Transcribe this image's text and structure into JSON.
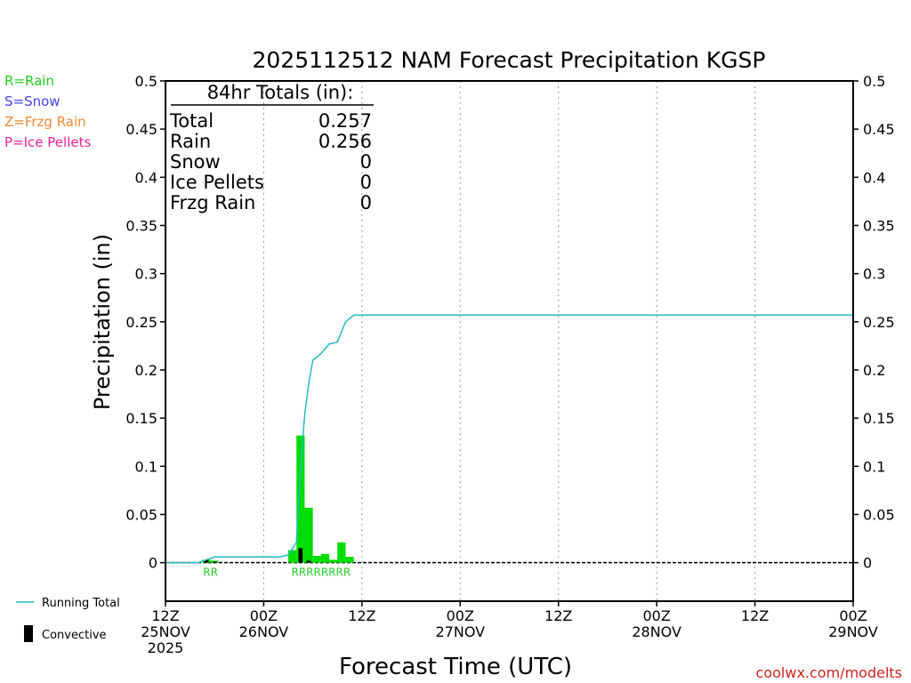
{
  "chart_data": {
    "type": "bar",
    "title": "2025112512 NAM Forecast Precipitation KGSP",
    "xlabel": "Forecast Time (UTC)",
    "ylabel": "Precipitation (in)",
    "ylim": [
      -0.04,
      0.5
    ],
    "y_ticks": [
      "0.5",
      "0.45",
      "0.4",
      "0.35",
      "0.3",
      "0.25",
      "0.2",
      "0.15",
      "0.1",
      "0.05",
      "0"
    ],
    "x_axis_range_hours": [
      0,
      84
    ],
    "x_ticks": [
      {
        "hour": 0,
        "line1": "12Z",
        "line2": "25NOV",
        "line3": "2025"
      },
      {
        "hour": 12,
        "line1": "00Z",
        "line2": "26NOV",
        "line3": ""
      },
      {
        "hour": 24,
        "line1": "12Z",
        "line2": "",
        "line3": ""
      },
      {
        "hour": 36,
        "line1": "00Z",
        "line2": "27NOV",
        "line3": ""
      },
      {
        "hour": 48,
        "line1": "12Z",
        "line2": "",
        "line3": ""
      },
      {
        "hour": 60,
        "line1": "00Z",
        "line2": "28NOV",
        "line3": ""
      },
      {
        "hour": 72,
        "line1": "12Z",
        "line2": "",
        "line3": ""
      },
      {
        "hour": 84,
        "line1": "00Z",
        "line2": "29NOV",
        "line3": ""
      }
    ],
    "grid": "vertical dotted lines at 00Z and 12Z",
    "precip_bars": [
      {
        "hour": 5,
        "total": 0.003,
        "convective": 0.003
      },
      {
        "hour": 6,
        "total": 0.002,
        "convective": 0.001
      },
      {
        "hour": 15.5,
        "total": 0.013,
        "convective": 0.0
      },
      {
        "hour": 16.5,
        "total": 0.132,
        "convective": 0.015
      },
      {
        "hour": 17.5,
        "total": 0.057,
        "convective": 0.002
      },
      {
        "hour": 18.5,
        "total": 0.007,
        "convective": 0.0
      },
      {
        "hour": 19.5,
        "total": 0.009,
        "convective": 0.0
      },
      {
        "hour": 20.5,
        "total": 0.003,
        "convective": 0.0
      },
      {
        "hour": 21.5,
        "total": 0.021,
        "convective": 0.0
      },
      {
        "hour": 22.5,
        "total": 0.006,
        "convective": 0.0
      }
    ],
    "running_total": {
      "name": "Running Total",
      "x": [
        0,
        4,
        5,
        6,
        7,
        12,
        14,
        15,
        16,
        16.5,
        17,
        17.5,
        18,
        19,
        20,
        21,
        22,
        23,
        84
      ],
      "y": [
        0,
        0.0,
        0.003,
        0.006,
        0.006,
        0.006,
        0.006,
        0.008,
        0.021,
        0.1,
        0.153,
        0.186,
        0.21,
        0.217,
        0.227,
        0.229,
        0.25,
        0.257,
        0.257
      ]
    },
    "ptype_markers": [
      {
        "hour": 5.5,
        "text": "RR"
      },
      {
        "hour": 19,
        "text": "RRRRRRRR"
      }
    ],
    "totals_box": {
      "header": "84hr Totals (in):",
      "rows": [
        {
          "label": "Total",
          "value": "0.257"
        },
        {
          "label": "Rain",
          "value": "0.256"
        },
        {
          "label": "Snow",
          "value": "0"
        },
        {
          "label": "Ice Pellets",
          "value": "0"
        },
        {
          "label": "Frzg Rain",
          "value": "0"
        }
      ]
    },
    "ptype_legend": [
      {
        "text": "R=Rain",
        "color": "#22cc22"
      },
      {
        "text": "S=Snow",
        "color": "#4444ee"
      },
      {
        "text": "Z=Frzg Rain",
        "color": "#ee8833"
      },
      {
        "text": "P=Ice Pellets",
        "color": "#ee2299"
      }
    ],
    "series_legend": {
      "running_total": "Running Total",
      "convective": "Convective"
    },
    "credit": "coolwx.com/modelts",
    "colors": {
      "rain_bar": "#00dd00",
      "convective_bar": "#000000",
      "running_total": "#22bbbb",
      "credit": "#cc2222",
      "grid": "#999999"
    }
  }
}
